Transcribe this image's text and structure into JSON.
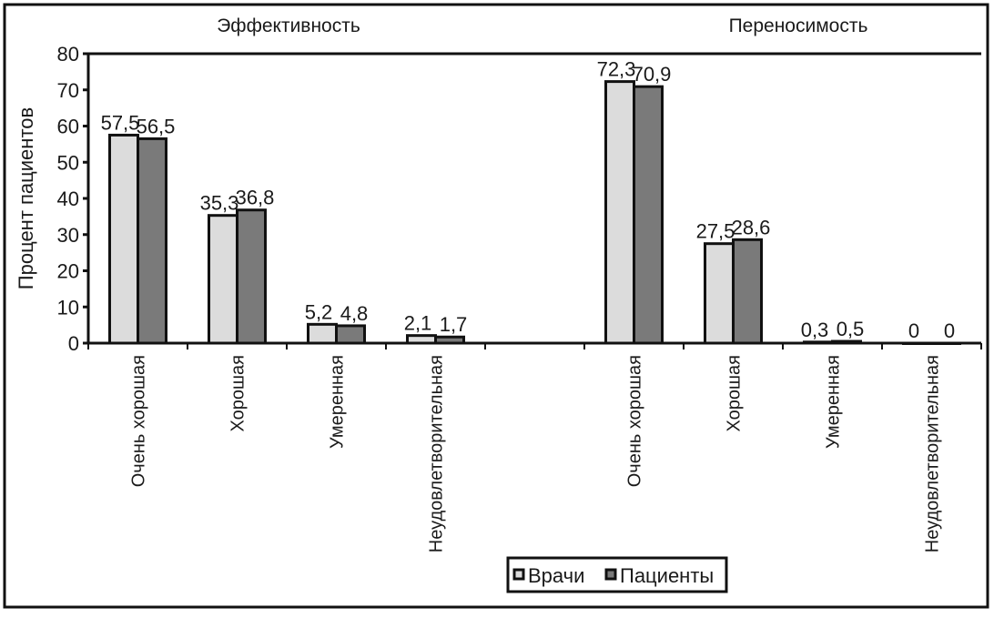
{
  "chart_data": {
    "type": "bar",
    "ylabel": "Процент пациентов",
    "ylim": [
      0,
      80
    ],
    "yticks": [
      "0",
      "10",
      "20",
      "30",
      "40",
      "50",
      "60",
      "70",
      "80"
    ],
    "groups": [
      {
        "title": "Эффективность",
        "categories": [
          "Очень хорошая",
          "Хорошая",
          "Умеренная",
          "Неудовлетворительная"
        ]
      },
      {
        "title": "Переносимость",
        "categories": [
          "Очень хорошая",
          "Хорошая",
          "Умеренная",
          "Неудовлетворительная"
        ]
      }
    ],
    "series": [
      {
        "name": "Врачи",
        "color": "#dcdcdc",
        "values": [
          57.5,
          35.3,
          5.2,
          2.1,
          72.3,
          27.5,
          0.3,
          0
        ],
        "labels": [
          "57,5",
          "35,3",
          "5,2",
          "2,1",
          "72,3",
          "27,5",
          "0,3",
          "0"
        ]
      },
      {
        "name": "Пациенты",
        "color": "#7a7a7a",
        "values": [
          56.5,
          36.8,
          4.8,
          1.7,
          70.9,
          28.6,
          0.5,
          0
        ],
        "labels": [
          "56,5",
          "36,8",
          "4,8",
          "1,7",
          "70,9",
          "28,6",
          "0,5",
          "0"
        ]
      }
    ],
    "legend": "bottom-center"
  }
}
